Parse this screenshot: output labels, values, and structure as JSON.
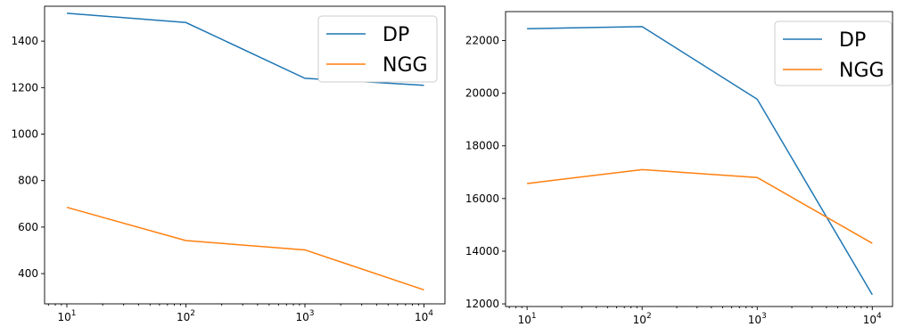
{
  "chart_data": [
    {
      "type": "line",
      "title": "",
      "xlabel": "",
      "ylabel": "",
      "xscale": "log",
      "x": [
        10,
        100,
        1000,
        10000
      ],
      "xlim": [
        6.5,
        15000
      ],
      "ylim": [
        270,
        1550
      ],
      "xticks": [
        {
          "value": 10,
          "base": "10",
          "exp": "1"
        },
        {
          "value": 100,
          "base": "10",
          "exp": "2"
        },
        {
          "value": 1000,
          "base": "10",
          "exp": "3"
        },
        {
          "value": 10000,
          "base": "10",
          "exp": "4"
        }
      ],
      "yticks": [
        {
          "value": 400,
          "label": "400"
        },
        {
          "value": 600,
          "label": "600"
        },
        {
          "value": 800,
          "label": "800"
        },
        {
          "value": 1000,
          "label": "1000"
        },
        {
          "value": 1200,
          "label": "1200"
        },
        {
          "value": 1400,
          "label": "1400"
        }
      ],
      "series": [
        {
          "name": "DP",
          "color": "#1f77b4",
          "values": [
            1520,
            1480,
            1240,
            1210
          ]
        },
        {
          "name": "NGG",
          "color": "#ff7f0e",
          "values": [
            685,
            542,
            502,
            330
          ]
        }
      ],
      "legend": "top-right",
      "grid": false
    },
    {
      "type": "line",
      "title": "",
      "xlabel": "",
      "ylabel": "",
      "xscale": "log",
      "x": [
        10,
        100,
        1000,
        10000
      ],
      "xlim": [
        6.5,
        15000
      ],
      "ylim": [
        11900,
        23100
      ],
      "xticks": [
        {
          "value": 10,
          "base": "10",
          "exp": "1"
        },
        {
          "value": 100,
          "base": "10",
          "exp": "2"
        },
        {
          "value": 1000,
          "base": "10",
          "exp": "3"
        },
        {
          "value": 10000,
          "base": "10",
          "exp": "4"
        }
      ],
      "yticks": [
        {
          "value": 12000,
          "label": "12000"
        },
        {
          "value": 14000,
          "label": "14000"
        },
        {
          "value": 16000,
          "label": "16000"
        },
        {
          "value": 18000,
          "label": "18000"
        },
        {
          "value": 20000,
          "label": "20000"
        },
        {
          "value": 22000,
          "label": "22000"
        }
      ],
      "series": [
        {
          "name": "DP",
          "color": "#1f77b4",
          "values": [
            22450,
            22530,
            19770,
            12350
          ]
        },
        {
          "name": "NGG",
          "color": "#ff7f0e",
          "values": [
            16570,
            17100,
            16800,
            14300
          ]
        }
      ],
      "legend": "top-right",
      "grid": false
    }
  ]
}
